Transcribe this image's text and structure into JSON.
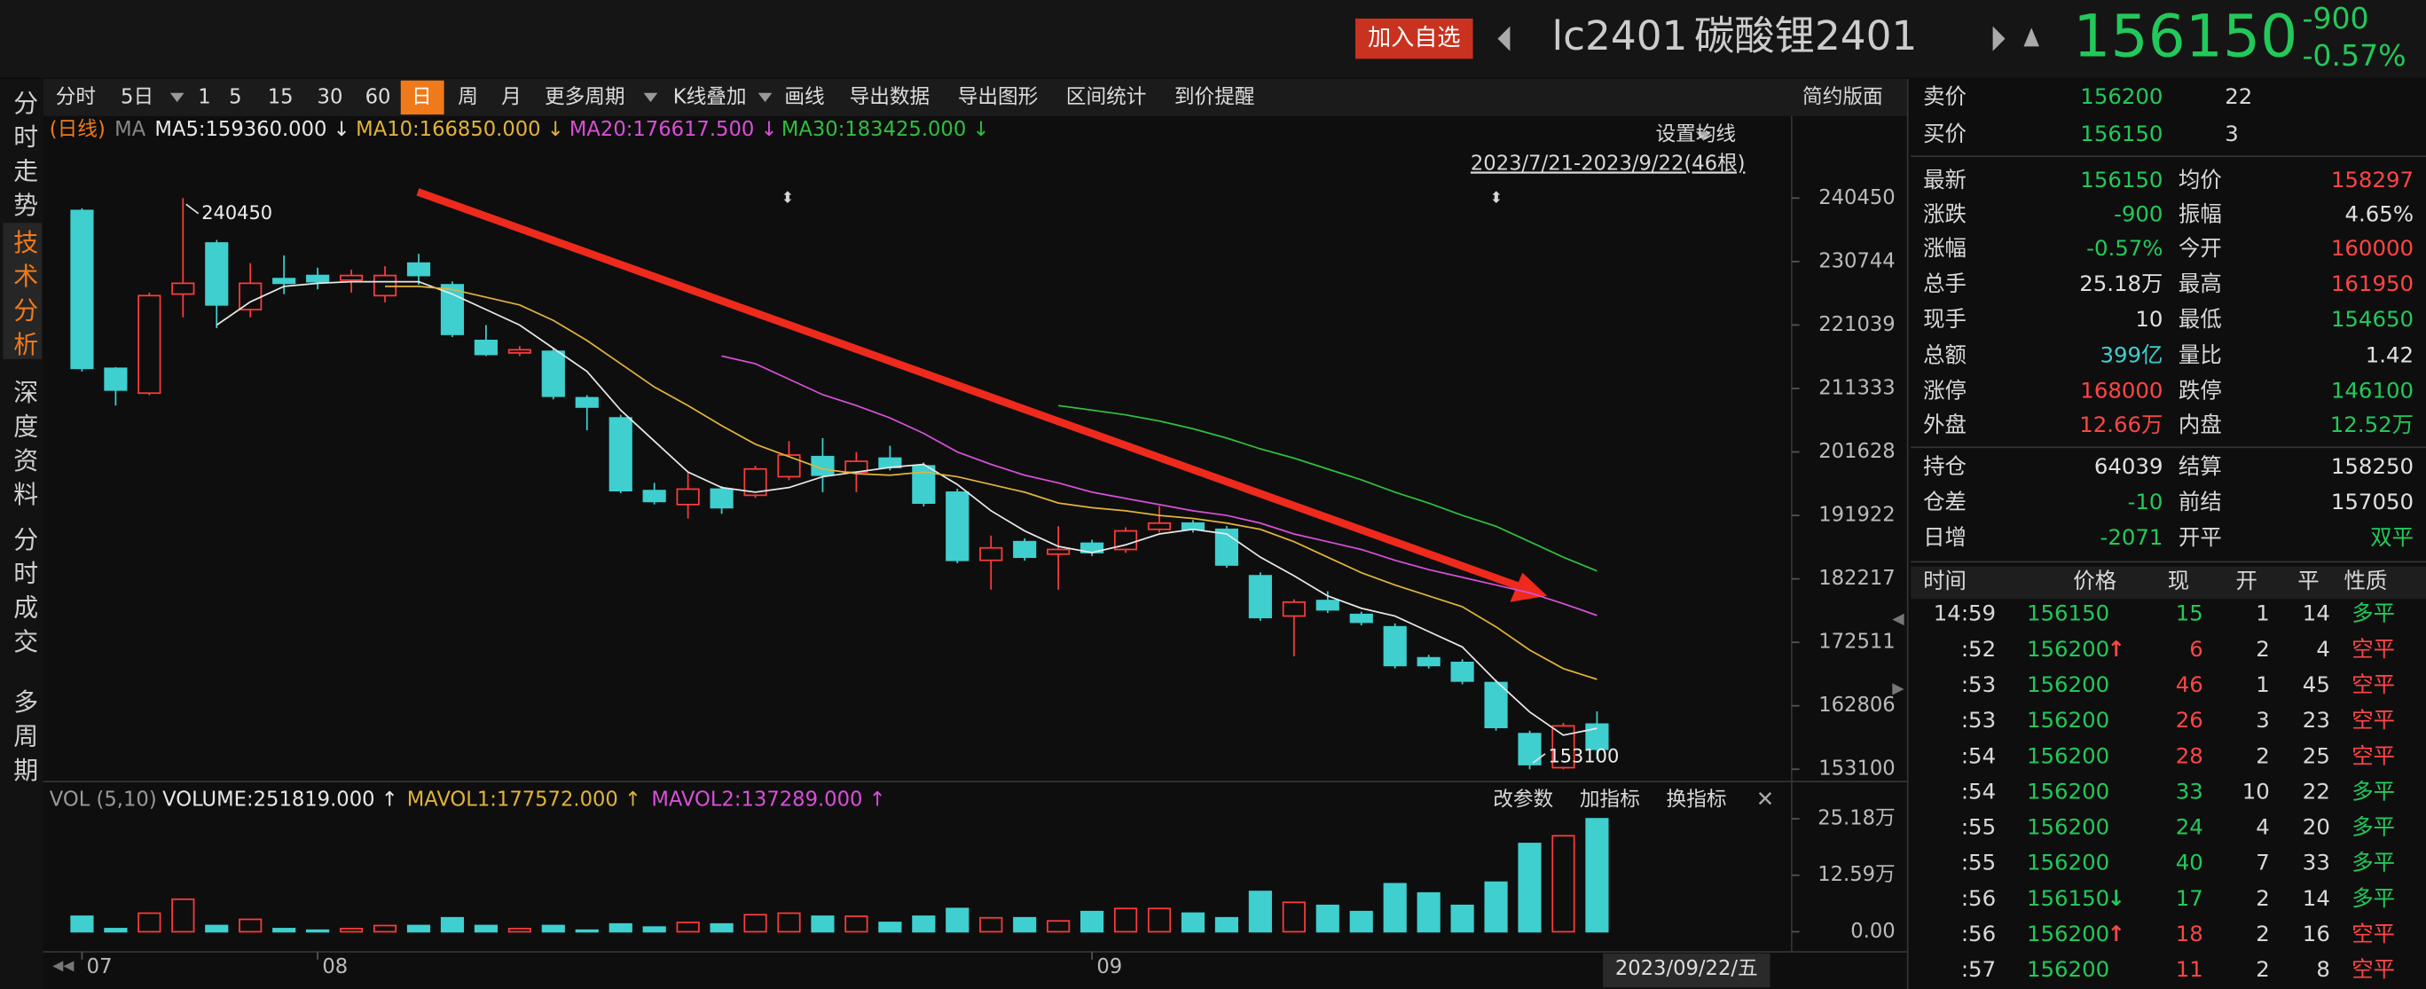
{
  "header": {
    "button": "加入自选",
    "symbol": "lc2401",
    "name": "碳酸锂2401",
    "last": "156150",
    "change": "-900",
    "change_pct": "-0.57%"
  },
  "side_tabs": [
    "分时走势",
    "技术分析",
    "深度资料",
    "分时成交",
    "多周期"
  ],
  "toolbar": {
    "items": [
      "分时",
      "5日",
      "1",
      "5",
      "15",
      "30",
      "60",
      "日",
      "周",
      "月",
      "更多周期",
      "K线叠加",
      "画线",
      "导出数据",
      "导出图形",
      "区间统计",
      "到价提醒"
    ],
    "layout_button": "简约版面"
  },
  "chart_data": [
    {
      "type": "candlestick",
      "period_label": "(日线)",
      "ma_label": "MA",
      "set_ma": "设置均线",
      "range_label": "2023/7/21-2023/9/22(46根)",
      "date_label": "2023/09/22/五",
      "up_color": "#ff3b3b",
      "down_color": "#3fcfcf",
      "categories": [
        "07",
        null,
        null,
        null,
        null,
        null,
        null,
        "08",
        null,
        null,
        null,
        null,
        null,
        null,
        null,
        null,
        null,
        null,
        null,
        null,
        null,
        null,
        null,
        null,
        null,
        null,
        null,
        null,
        null,
        null,
        "09",
        null,
        null,
        null,
        null,
        null,
        null,
        null,
        null,
        null,
        null,
        null,
        null,
        null,
        null,
        null
      ],
      "ohlc": [
        [
          238550,
          238900,
          213930,
          214410
        ],
        [
          214410,
          214600,
          208720,
          211090
        ],
        [
          210620,
          226000,
          210300,
          225530
        ],
        [
          225770,
          240450,
          222220,
          227420
        ],
        [
          233580,
          234050,
          220560,
          224110
        ],
        [
          223400,
          230500,
          222220,
          227420
        ],
        [
          228130,
          231680,
          225770,
          227420
        ],
        [
          228610,
          229800,
          226500,
          227660
        ],
        [
          227900,
          229500,
          226000,
          228610
        ],
        [
          225530,
          230030,
          224500,
          228610
        ],
        [
          230500,
          231920,
          227190,
          228610
        ],
        [
          227190,
          227700,
          219200,
          219610
        ],
        [
          218670,
          221030,
          216300,
          216540
        ],
        [
          216770,
          217800,
          216300,
          217250
        ],
        [
          217010,
          217500,
          209670,
          210150
        ],
        [
          209910,
          210300,
          204940,
          208490
        ],
        [
          206830,
          207300,
          195300,
          195710
        ],
        [
          195710,
          196890,
          193600,
          194050
        ],
        [
          193580,
          198550,
          191450,
          195940
        ],
        [
          195940,
          196400,
          192160,
          193100
        ],
        [
          195000,
          199500,
          194600,
          199020
        ],
        [
          197840,
          203280,
          197300,
          201150
        ],
        [
          200910,
          203750,
          195470,
          198070
        ],
        [
          198550,
          201620,
          195470,
          200200
        ],
        [
          200680,
          202570,
          198800,
          199260
        ],
        [
          199490,
          200000,
          193300,
          193810
        ],
        [
          195470,
          196000,
          184600,
          185050
        ],
        [
          185050,
          188840,
          180560,
          186950
        ],
        [
          187900,
          188400,
          185000,
          185530
        ],
        [
          186000,
          190260,
          180560,
          186710
        ],
        [
          187660,
          188200,
          185700,
          186240
        ],
        [
          186710,
          190100,
          186200,
          189550
        ],
        [
          189790,
          193340,
          189300,
          190740
        ],
        [
          190740,
          191200,
          189300,
          189790
        ],
        [
          189790,
          190300,
          183900,
          184340
        ],
        [
          182690,
          183200,
          175800,
          176300
        ],
        [
          176530,
          179100,
          170380,
          178660
        ],
        [
          178900,
          180320,
          177000,
          177480
        ],
        [
          176770,
          177200,
          175100,
          175590
        ],
        [
          174880,
          175400,
          168500,
          168960
        ],
        [
          170140,
          170600,
          168500,
          168960
        ],
        [
          169430,
          169900,
          166100,
          166590
        ],
        [
          166350,
          166800,
          159000,
          159490
        ],
        [
          158540,
          159000,
          153100,
          153810
        ],
        [
          153340,
          160200,
          153100,
          159730
        ],
        [
          160000,
          161950,
          154650,
          156150
        ]
      ],
      "series": [
        {
          "name": "MA5",
          "label": "MA5:159360.000 ↓",
          "color": "#e8e8e8",
          "values": [
            null,
            null,
            null,
            null,
            221030,
            224580,
            226950,
            227420,
            227660,
            227660,
            227660,
            225770,
            223400,
            221030,
            217480,
            213930,
            208020,
            203280,
            198550,
            196180,
            195470,
            196180,
            197840,
            198550,
            199260,
            199730,
            196650,
            192630,
            189550,
            187180,
            186240,
            187420,
            189080,
            189790,
            189080,
            185530,
            182690,
            179610,
            177720,
            176530,
            174160,
            171800,
            166590,
            161860,
            158310,
            159360
          ]
        },
        {
          "name": "MA10",
          "label": "MA10:166850.000 ↓",
          "color": "#e2b33a",
          "values": [
            null,
            null,
            null,
            null,
            null,
            null,
            null,
            null,
            null,
            226950,
            226950,
            226480,
            225290,
            224110,
            221740,
            218670,
            215120,
            211560,
            208720,
            205650,
            202810,
            200910,
            199020,
            198310,
            198070,
            198550,
            197840,
            196650,
            195470,
            193810,
            193100,
            192630,
            191920,
            191450,
            190740,
            189790,
            187900,
            185530,
            183160,
            181270,
            179610,
            177950,
            174880,
            171330,
            168490,
            166850
          ]
        },
        {
          "name": "MA20",
          "label": "MA20:176617.500 ↓",
          "color": "#d94fd9",
          "values": [
            null,
            null,
            null,
            null,
            null,
            null,
            null,
            null,
            null,
            null,
            null,
            null,
            null,
            null,
            null,
            null,
            null,
            null,
            null,
            216300,
            215120,
            212750,
            210380,
            208720,
            206830,
            204460,
            201620,
            199730,
            198070,
            196890,
            195470,
            194520,
            193580,
            192630,
            191920,
            190740,
            189080,
            187900,
            186710,
            185050,
            183630,
            182450,
            181270,
            180080,
            178430,
            176617.5
          ]
        },
        {
          "name": "MA30",
          "label": "MA30:183425.000 ↓",
          "color": "#2fbf3f",
          "values": [
            null,
            null,
            null,
            null,
            null,
            null,
            null,
            null,
            null,
            null,
            null,
            null,
            null,
            null,
            null,
            null,
            null,
            null,
            null,
            null,
            null,
            null,
            null,
            null,
            null,
            null,
            null,
            null,
            null,
            208720,
            208020,
            207300,
            206360,
            205170,
            203750,
            202100,
            200680,
            199020,
            197360,
            195470,
            193810,
            191920,
            190260,
            187900,
            185530,
            183425
          ]
        }
      ],
      "annotations": [
        {
          "text": "240450",
          "index": 3
        },
        {
          "text": "153100",
          "index": 43
        }
      ],
      "ylim": [
        151210,
        248020
      ],
      "yticks": [
        240450,
        230744,
        221039,
        211333,
        201628,
        191922,
        182217,
        172511,
        162806,
        153100
      ],
      "grid": false
    },
    {
      "type": "bar",
      "title": "VOL (5,10)",
      "legend": [
        {
          "label": "VOLUME:251819.000 ↑",
          "color": "#e8e8e8"
        },
        {
          "label": "MAVOL1:177572.000 ↑",
          "color": "#e2b33a"
        },
        {
          "label": "MAVOL2:137289.000 ↑",
          "color": "#d94fd9"
        }
      ],
      "buttons": [
        "改参数",
        "加指标",
        "换指标"
      ],
      "values": [
        34500,
        6900,
        41400,
        72450,
        13800,
        27600,
        6900,
        3450,
        6900,
        13800,
        13800,
        31050,
        13800,
        6900,
        13800,
        3450,
        17250,
        10350,
        20700,
        17250,
        37950,
        41400,
        34500,
        34500,
        20700,
        34500,
        51750,
        31050,
        31050,
        24150,
        44850,
        51750,
        51750,
        41400,
        31050,
        89700,
        65550,
        58650,
        44850,
        106950,
        86250,
        58650,
        110400,
        196650,
        213900,
        251819
      ],
      "ylim": [
        0,
        262200
      ],
      "yticks": [
        {
          "value": 251800,
          "label": "25.18万"
        },
        {
          "value": 125900,
          "label": "12.59万"
        },
        {
          "value": 0,
          "label": "0.00"
        }
      ]
    }
  ],
  "quote": {
    "book": [
      {
        "label": "卖价",
        "price": "156200",
        "qty": "22"
      },
      {
        "label": "买价",
        "price": "156150",
        "qty": "3"
      }
    ],
    "stats": [
      [
        {
          "label": "最新",
          "value": "156150",
          "color": "#22c95a"
        },
        {
          "label": "均价",
          "value": "158297",
          "color": "#ff4545"
        }
      ],
      [
        {
          "label": "涨跌",
          "value": "-900",
          "color": "#22c95a"
        },
        {
          "label": "振幅",
          "value": "4.65%",
          "color": "#e0e0e0"
        }
      ],
      [
        {
          "label": "涨幅",
          "value": "-0.57%",
          "color": "#22c95a"
        },
        {
          "label": "今开",
          "value": "160000",
          "color": "#ff4545"
        }
      ],
      [
        {
          "label": "总手",
          "value": "25.18万",
          "color": "#e0e0e0"
        },
        {
          "label": "最高",
          "value": "161950",
          "color": "#ff4545"
        }
      ],
      [
        {
          "label": "现手",
          "value": "10",
          "color": "#e0e0e0"
        },
        {
          "label": "最低",
          "value": "154650",
          "color": "#22c95a"
        }
      ],
      [
        {
          "label": "总额",
          "value": "399亿",
          "color": "#3fcfcf"
        },
        {
          "label": "量比",
          "value": "1.42",
          "color": "#e0e0e0"
        }
      ],
      [
        {
          "label": "涨停",
          "value": "168000",
          "color": "#ff4545"
        },
        {
          "label": "跌停",
          "value": "146100",
          "color": "#22c95a"
        }
      ],
      [
        {
          "label": "外盘",
          "value": "12.66万",
          "color": "#ff4545"
        },
        {
          "label": "内盘",
          "value": "12.52万",
          "color": "#22c95a"
        }
      ],
      [
        {
          "label": "持仓",
          "value": "64039",
          "color": "#e0e0e0"
        },
        {
          "label": "结算",
          "value": "158250",
          "color": "#e0e0e0"
        }
      ],
      [
        {
          "label": "仓差",
          "value": "-10",
          "color": "#22c95a"
        },
        {
          "label": "前结",
          "value": "157050",
          "color": "#e0e0e0"
        }
      ],
      [
        {
          "label": "日增",
          "value": "-2071",
          "color": "#22c95a"
        },
        {
          "label": "开平",
          "value": "双平",
          "color": "#22c95a"
        }
      ]
    ]
  },
  "trades": {
    "header": [
      "时间",
      "价格",
      "现",
      "开",
      "平",
      "性质"
    ],
    "rows": [
      {
        "time": "14:59",
        "price": "156150",
        "now": "15",
        "open": "1",
        "close": "14",
        "nature": "多平",
        "color": "#22c95a"
      },
      {
        "time": ":52",
        "price": "156200",
        "arrow": "↑",
        "now": "6",
        "open": "2",
        "close": "4",
        "nature": "空平",
        "color": "#ff4545"
      },
      {
        "time": ":53",
        "price": "156200",
        "now": "46",
        "open": "1",
        "close": "45",
        "nature": "空平",
        "color": "#ff4545"
      },
      {
        "time": ":53",
        "price": "156200",
        "now": "26",
        "open": "3",
        "close": "23",
        "nature": "空平",
        "color": "#ff4545"
      },
      {
        "time": ":54",
        "price": "156200",
        "now": "28",
        "open": "2",
        "close": "25",
        "nature": "空平",
        "color": "#ff4545"
      },
      {
        "time": ":54",
        "price": "156200",
        "now": "33",
        "open": "10",
        "close": "22",
        "nature": "多平",
        "color": "#22c95a"
      },
      {
        "time": ":55",
        "price": "156200",
        "now": "24",
        "open": "4",
        "close": "20",
        "nature": "多平",
        "color": "#22c95a"
      },
      {
        "time": ":55",
        "price": "156200",
        "now": "40",
        "open": "7",
        "close": "33",
        "nature": "多平",
        "color": "#22c95a"
      },
      {
        "time": ":56",
        "price": "156150",
        "arrow": "↓",
        "now": "17",
        "open": "2",
        "close": "14",
        "nature": "多平",
        "color": "#22c95a"
      },
      {
        "time": ":56",
        "price": "156200",
        "arrow": "↑",
        "now": "18",
        "open": "2",
        "close": "16",
        "nature": "空平",
        "color": "#ff4545"
      },
      {
        "time": ":57",
        "price": "156200",
        "now": "11",
        "open": "2",
        "close": "8",
        "nature": "空平",
        "color": "#ff4545"
      }
    ]
  }
}
